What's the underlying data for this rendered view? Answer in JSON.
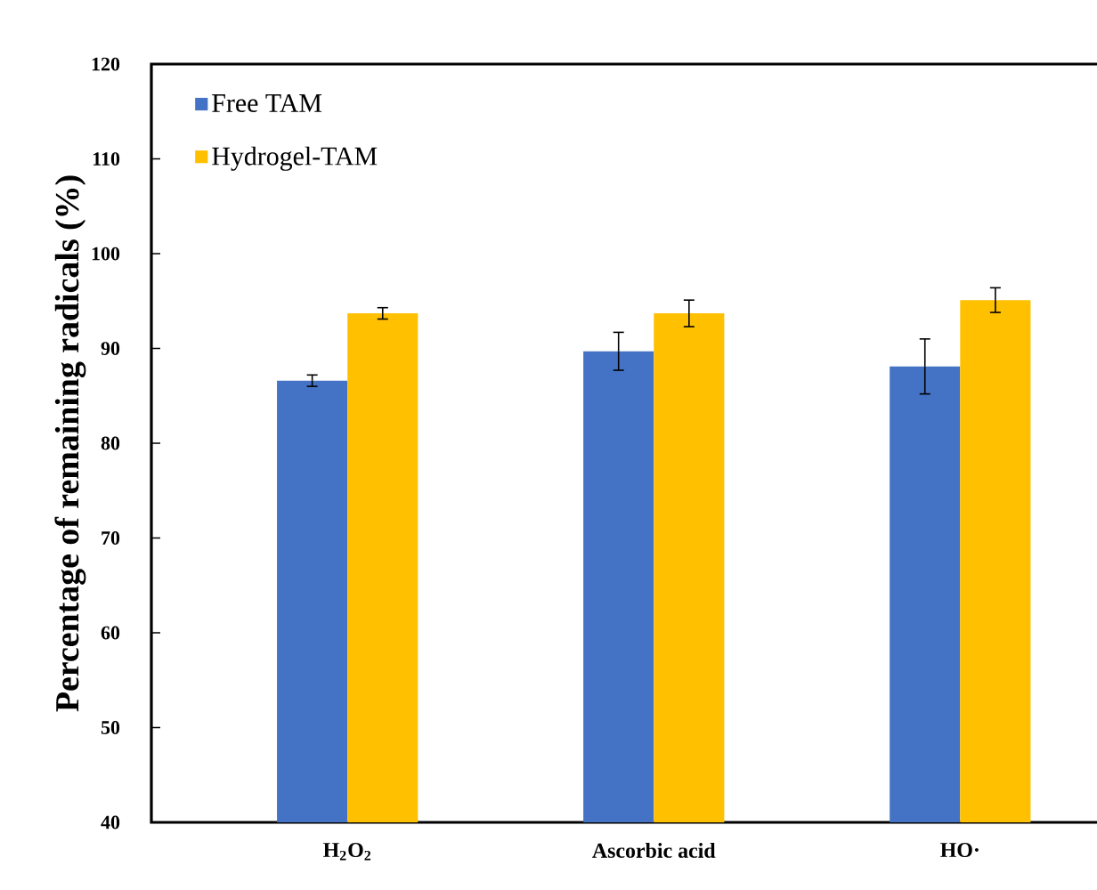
{
  "chart_data": {
    "type": "bar",
    "ylabel": "Percentage of remaining radicals (%)",
    "categories": [
      "H$_{2}$O$_{2}$",
      "Ascorbic acid",
      "HO·"
    ],
    "series": [
      {
        "name": "Free TAM",
        "color": "#4472c4",
        "values": [
          86.6,
          89.7,
          88.1
        ],
        "errors": [
          0.6,
          2.0,
          2.9
        ]
      },
      {
        "name": "Hydrogel-TAM",
        "color": "#ffc000",
        "values": [
          93.7,
          93.7,
          95.1
        ],
        "errors": [
          0.6,
          1.4,
          1.3
        ]
      }
    ],
    "ylim": [
      40,
      120
    ],
    "yticks": [
      40,
      50,
      60,
      70,
      80,
      90,
      100,
      110,
      120
    ],
    "grid": false,
    "legend": "top left"
  }
}
